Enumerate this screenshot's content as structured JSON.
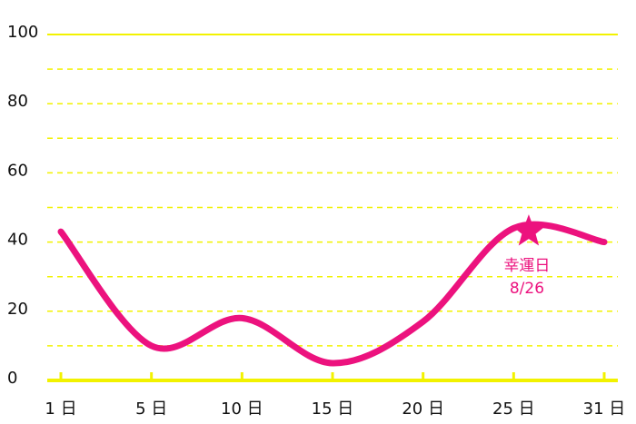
{
  "chart_data": {
    "type": "line",
    "categories": [
      "1 日",
      "5 日",
      "10 日",
      "15 日",
      "20 日",
      "25 日",
      "31 日"
    ],
    "series": [
      {
        "color": "#ec127e",
        "values": [
          43,
          10,
          18,
          5,
          17,
          44,
          40
        ]
      }
    ],
    "ylim": [
      0,
      100
    ],
    "yticks": [
      0,
      20,
      40,
      60,
      80,
      100
    ],
    "grid": true,
    "grid_color": "#f2f200",
    "annotation": {
      "label": "幸運日",
      "date": "8/26",
      "value": 43
    }
  }
}
